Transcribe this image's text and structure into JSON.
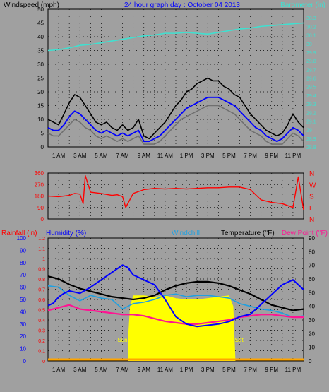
{
  "chart_data": [
    {
      "type": "line",
      "panel": "wind_baro",
      "title": "24 hour graph day : October 04 2013",
      "ylabel_left": "Windspeed (mph)",
      "ylabel_right": "Barometer (in)",
      "xlim": [
        0,
        24
      ],
      "ylim_left": [
        0,
        50
      ],
      "ylim_right": [
        28.8,
        30.4
      ],
      "grid": "dotted",
      "xticks": [
        "1 AM",
        "3 AM",
        "5 AM",
        "7 AM",
        "9 AM",
        "11 AM",
        "1 PM",
        "3 PM",
        "5 PM",
        "7 PM",
        "9 PM",
        "11 PM"
      ],
      "yticks_left": [
        "0",
        "5",
        "10",
        "15",
        "20",
        "25",
        "30",
        "35",
        "40",
        "45",
        "50"
      ],
      "yticks_right": [
        "28.8",
        "28.9",
        "29",
        "29.1",
        "29.2",
        "29.3",
        "29.4",
        "29.5",
        "29.6",
        "29.7",
        "29.8",
        "29.9",
        "30",
        "30.1",
        "30.2",
        "30.3"
      ],
      "colors": {
        "gust": "#000000",
        "average": "#0000ff",
        "lull": "#707070",
        "barometer": "#40e0d0"
      },
      "series": [
        {
          "key": "gust",
          "x": [
            0,
            0.5,
            1,
            1.5,
            2,
            2.5,
            3,
            3.5,
            4,
            4.5,
            5,
            5.5,
            6,
            6.5,
            7,
            7.5,
            8,
            8.5,
            9,
            9.5,
            10,
            10.5,
            11,
            11.5,
            12,
            12.5,
            13,
            13.5,
            14,
            14.5,
            15,
            15.5,
            16,
            16.5,
            17,
            17.5,
            18,
            18.5,
            19,
            19.5,
            20,
            20.5,
            21,
            21.5,
            22,
            22.5,
            23,
            23.5,
            24
          ],
          "values": [
            10,
            9,
            8,
            12,
            16,
            19,
            18,
            15,
            12,
            9,
            8,
            9,
            7,
            6,
            8,
            6,
            7,
            10,
            4,
            3,
            5,
            7,
            9,
            12,
            15,
            17,
            20,
            21,
            23,
            24,
            25,
            24,
            24,
            22,
            21,
            19,
            18,
            15,
            12,
            10,
            8,
            6,
            5,
            4,
            5,
            8,
            12,
            9,
            7
          ]
        },
        {
          "key": "average",
          "x": [
            0,
            0.5,
            1,
            1.5,
            2,
            2.5,
            3,
            3.5,
            4,
            4.5,
            5,
            5.5,
            6,
            6.5,
            7,
            7.5,
            8,
            8.5,
            9,
            9.5,
            10,
            10.5,
            11,
            11.5,
            12,
            12.5,
            13,
            13.5,
            14,
            14.5,
            15,
            15.5,
            16,
            16.5,
            17,
            17.5,
            18,
            18.5,
            19,
            19.5,
            20,
            20.5,
            21,
            21.5,
            22,
            22.5,
            23,
            23.5,
            24
          ],
          "values": [
            7,
            6,
            6,
            8,
            11,
            13,
            12,
            10,
            8,
            6,
            5,
            6,
            5,
            4,
            5,
            4,
            5,
            6,
            2,
            2,
            3,
            4,
            6,
            8,
            10,
            12,
            14,
            15,
            16,
            17,
            18,
            18,
            18,
            17,
            16,
            15,
            13,
            11,
            9,
            7,
            6,
            4,
            3,
            2,
            3,
            5,
            7,
            6,
            4
          ]
        },
        {
          "key": "lull",
          "x": [
            0,
            0.5,
            1,
            1.5,
            2,
            2.5,
            3,
            3.5,
            4,
            4.5,
            5,
            5.5,
            6,
            6.5,
            7,
            7.5,
            8,
            8.5,
            9,
            9.5,
            10,
            10.5,
            11,
            11.5,
            12,
            12.5,
            13,
            13.5,
            14,
            14.5,
            15,
            15.5,
            16,
            16.5,
            17,
            17.5,
            18,
            18.5,
            19,
            19.5,
            20,
            20.5,
            21,
            21.5,
            22,
            22.5,
            23,
            23.5,
            24
          ],
          "values": [
            5,
            4,
            4,
            6,
            8,
            10,
            9,
            7,
            6,
            4,
            3,
            4,
            3,
            2,
            3,
            2,
            3,
            4,
            1,
            1,
            1,
            2,
            4,
            6,
            8,
            10,
            11,
            12,
            13,
            14,
            15,
            15,
            15,
            14,
            13,
            12,
            10,
            8,
            6,
            5,
            4,
            2,
            1,
            1,
            1,
            3,
            5,
            4,
            2
          ]
        },
        {
          "key": "barometer",
          "x": [
            0,
            1,
            2,
            3,
            4,
            5,
            6,
            7,
            8,
            9,
            10,
            11,
            12,
            13,
            14,
            15,
            16,
            17,
            18,
            19,
            20,
            21,
            22,
            23,
            24
          ],
          "values": [
            29.92,
            29.93,
            29.95,
            29.98,
            29.99,
            30.01,
            30.03,
            30.05,
            30.07,
            30.09,
            30.1,
            30.12,
            30.12,
            30.13,
            30.12,
            30.11,
            30.13,
            30.15,
            30.17,
            30.18,
            30.2,
            30.21,
            30.22,
            30.23,
            30.24
          ]
        }
      ]
    },
    {
      "type": "line",
      "panel": "direction",
      "xlim": [
        0,
        24
      ],
      "ylim": [
        0,
        360
      ],
      "yticks_left": [
        "0",
        "90",
        "180",
        "270",
        "360"
      ],
      "yticks_right": [
        "N",
        "E",
        "S",
        "W",
        "N"
      ],
      "color": "#ff0000",
      "series": [
        {
          "key": "direction",
          "x": [
            0,
            1,
            2,
            2.5,
            3,
            3.3,
            3.5,
            4,
            5,
            6,
            6.5,
            7,
            7.3,
            8,
            9,
            10,
            11,
            12,
            13,
            14,
            15,
            16,
            17,
            18,
            19,
            20,
            21,
            22,
            23,
            23.5,
            24
          ],
          "values": [
            180,
            175,
            185,
            200,
            195,
            120,
            340,
            210,
            200,
            185,
            190,
            175,
            90,
            200,
            230,
            240,
            235,
            240,
            235,
            240,
            245,
            245,
            250,
            250,
            230,
            150,
            130,
            120,
            90,
            330,
            70
          ]
        }
      ]
    },
    {
      "type": "line",
      "panel": "rain_humidity_temp",
      "ylabel_rain": "Rainfall (in)",
      "ylabel_humidity": "Humidity (%)",
      "ylabel_windchill": "Windchill",
      "ylabel_temp": "Temperature (°F)",
      "ylabel_dew": "Dew Point (°F)",
      "xlim": [
        0,
        24
      ],
      "ylim_humidity": [
        0,
        100
      ],
      "ylim_rain": [
        0,
        1.2
      ],
      "ylim_temp": [
        0,
        90
      ],
      "yticks_humidity": [
        "0",
        "10",
        "20",
        "30",
        "40",
        "50",
        "60",
        "70",
        "80",
        "90",
        "100"
      ],
      "yticks_rain": [
        "0",
        "0.1",
        "0.2",
        "0.3",
        "0.4",
        "0.5",
        "0.6",
        "0.7",
        "0.8",
        "0.9",
        "1",
        "1.1",
        "1.2"
      ],
      "yticks_temp": [
        "0",
        "10",
        "20",
        "30",
        "40",
        "50",
        "60",
        "70",
        "80",
        "90"
      ],
      "annotations": [
        "Sun Rise",
        "Sun Set"
      ],
      "colors": {
        "humidity": "#0000ff",
        "windchill": "#20a0e0",
        "temperature": "#000000",
        "dewpoint": "#ff1493",
        "rain": "#ffa500",
        "solar": "#ffff00"
      },
      "series": [
        {
          "key": "humidity",
          "x": [
            0,
            0.5,
            1,
            1.5,
            2,
            3,
            4,
            5,
            6,
            7,
            7.5,
            8,
            9,
            10,
            11,
            12,
            13,
            14,
            15,
            16,
            17,
            18,
            19,
            20,
            21,
            22,
            23,
            23.5,
            24
          ],
          "values": [
            45,
            47,
            52,
            55,
            57,
            55,
            60,
            66,
            72,
            78,
            76,
            70,
            66,
            62,
            50,
            36,
            30,
            28,
            29,
            30,
            32,
            36,
            38,
            46,
            54,
            62,
            66,
            62,
            58
          ]
        },
        {
          "key": "windchill",
          "x": [
            0,
            1,
            2,
            3,
            4,
            5,
            6,
            7,
            8,
            9,
            10,
            11,
            12,
            13,
            14,
            15,
            16,
            17,
            18,
            19,
            20,
            21,
            22,
            23,
            24
          ],
          "values": [
            55,
            54,
            48,
            44,
            48,
            46,
            45,
            38,
            42,
            43,
            45,
            48,
            49,
            47,
            48,
            48,
            47,
            46,
            42,
            40,
            38,
            37,
            35,
            32,
            33
          ]
        },
        {
          "key": "temperature",
          "x": [
            0,
            1,
            2,
            3,
            4,
            5,
            6,
            7,
            8,
            9,
            10,
            11,
            12,
            13,
            14,
            15,
            16,
            17,
            18,
            19,
            20,
            21,
            22,
            23,
            24
          ],
          "values": [
            62,
            60,
            56,
            53,
            51,
            49,
            47,
            46,
            45,
            46,
            48,
            52,
            55,
            57,
            58,
            58,
            57,
            55,
            52,
            49,
            45,
            41,
            39,
            37,
            38
          ]
        },
        {
          "key": "dewpoint",
          "x": [
            0,
            1,
            2,
            3,
            4,
            5,
            6,
            7,
            8,
            9,
            10,
            11,
            12,
            13,
            14,
            15,
            16,
            17,
            18,
            19,
            20,
            21,
            22,
            23,
            24
          ],
          "values": [
            37,
            39,
            41,
            38,
            37,
            36,
            35,
            34,
            34,
            33,
            31,
            29,
            28,
            27,
            27,
            28,
            29,
            30,
            32,
            33,
            34,
            34,
            33,
            32,
            32
          ]
        },
        {
          "key": "solar",
          "x": [
            7.5,
            7.7,
            8,
            8.5,
            9,
            10,
            11,
            12,
            13,
            14,
            15,
            16,
            17,
            17.4,
            17.6
          ],
          "values": [
            14,
            40,
            48,
            48,
            48,
            47,
            48,
            46,
            45,
            45,
            46,
            47,
            48,
            40,
            0
          ]
        },
        {
          "key": "rain",
          "x": [
            0,
            24
          ],
          "values": [
            0,
            0
          ]
        }
      ]
    }
  ]
}
